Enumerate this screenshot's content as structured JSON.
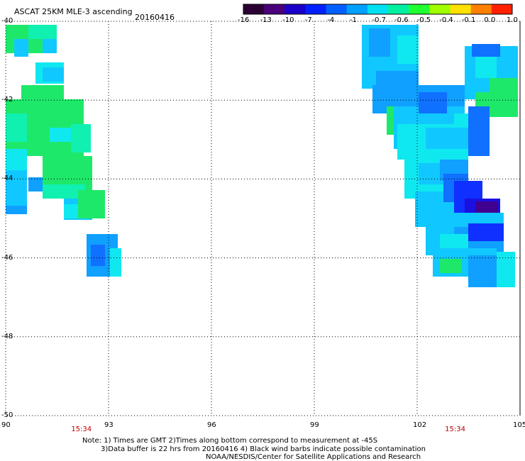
{
  "header": {
    "title": "ASCAT 25KM MLE-3 ascending",
    "date": "20160416"
  },
  "colorbar": {
    "labels": [
      "-16",
      "-13",
      "-10",
      "-7",
      "-4",
      "-1",
      "-0.7",
      "-0.6",
      "-0.5",
      "-0.4",
      "-0.1",
      "0.0",
      "1.0"
    ],
    "colors": [
      "#2a0033",
      "#4a007a",
      "#1a00c8",
      "#0020ff",
      "#0060ff",
      "#00a0ff",
      "#00e0f0",
      "#00f0a0",
      "#20ff30",
      "#a0ff00",
      "#ffe000",
      "#ff8000",
      "#ff2000"
    ]
  },
  "axes": {
    "lon_ticks": [
      "90",
      "93",
      "96",
      "99",
      "102",
      "105"
    ],
    "lat_ticks": [
      "-40",
      "-42",
      "-44",
      "-46",
      "-48",
      "-50"
    ],
    "lon_range": [
      90,
      105
    ],
    "lat_range": [
      -50,
      -40
    ],
    "time_labels": [
      {
        "text": "15:34",
        "lon": 92.2
      },
      {
        "text": "15:34",
        "lon": 103.1
      }
    ]
  },
  "swath_colors": {
    "green": "#1ee86a",
    "cyan_green": "#10f0b0",
    "cyan": "#10e8f0",
    "light_blue": "#10c8ff",
    "blue": "#10a0ff",
    "mid_blue": "#1070ff",
    "deep_blue": "#1030ff",
    "indigo": "#1a10e0",
    "purple": "#400090"
  },
  "footer": {
    "line1": "Note: 1) Times are GMT 2)Times along bottom correspond to measurement at -45S",
    "line2": "3)Data buffer is 22 hrs from 20160416 4) Black wind barbs indicate possible contamination",
    "line3": "NOAA/NESDIS/Center for Satellite Applications and Research"
  }
}
